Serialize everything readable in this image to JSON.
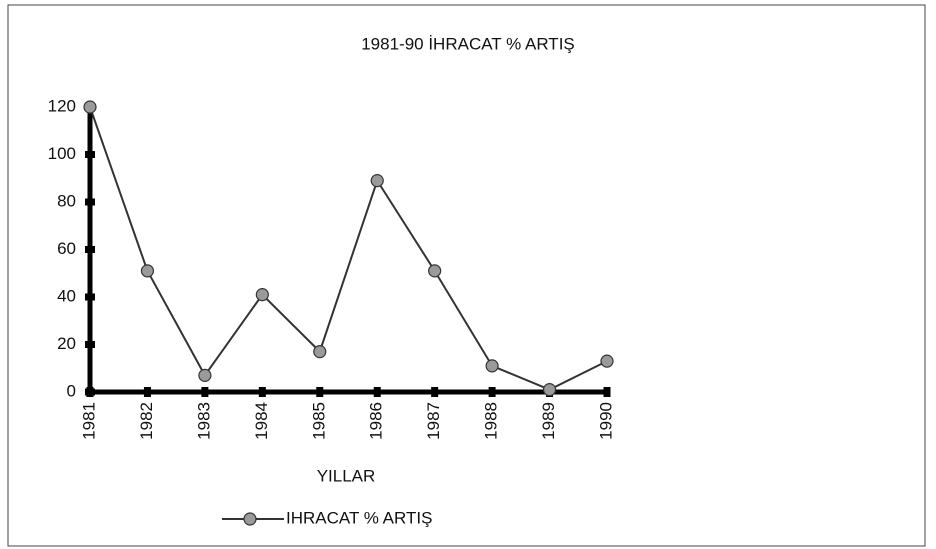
{
  "chart_data": {
    "type": "line",
    "title": "1981-90 İHRACAT % ARTIŞ",
    "categories": [
      "1981",
      "1982",
      "1983",
      "1984",
      "1985",
      "1986",
      "1987",
      "1988",
      "1989",
      "1990"
    ],
    "series": [
      {
        "name": "IHRACAT % ARTIŞ",
        "color": "#333333",
        "marker_color": "#9a9a9a",
        "values": [
          120,
          51,
          7,
          41,
          17,
          89,
          51,
          11,
          1,
          13
        ]
      }
    ],
    "x_label": "YILLAR",
    "ylim": [
      0,
      120
    ],
    "yticks": [
      0,
      20,
      40,
      60,
      80,
      100,
      120
    ],
    "grid": false,
    "legend": "bottom"
  }
}
